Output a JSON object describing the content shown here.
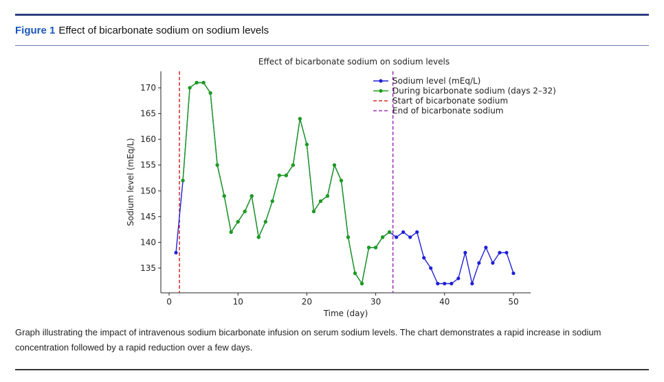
{
  "figure": {
    "label": "Figure 1",
    "title": "Effect of bicarbonate sodium on sodium levels",
    "caption": "Graph illustrating the impact of intravenous sodium bicarbonate infusion on serum sodium levels. The chart demonstrates a rapid increase in sodium concentration followed by a rapid reduction over a few days."
  },
  "chart_data": {
    "type": "line",
    "title": "Effect of bicarbonate sodium on sodium levels",
    "xlabel": "Time (day)",
    "ylabel": "Sodium level (mEq/L)",
    "xlim": [
      -1.2,
      52.5
    ],
    "ylim": [
      130.2,
      173.2
    ],
    "xticks": [
      0,
      10,
      20,
      30,
      40,
      50
    ],
    "yticks": [
      135,
      140,
      145,
      150,
      155,
      160,
      165,
      170
    ],
    "grid": false,
    "legend_position": "top-right",
    "series": [
      {
        "name": "Sodium level (mEq/L)",
        "color": "#1f1fd6",
        "x": [
          1,
          2,
          3,
          4,
          5,
          6,
          7,
          8,
          9,
          10,
          11,
          12,
          13,
          14,
          15,
          16,
          17,
          18,
          19,
          20,
          21,
          22,
          23,
          24,
          25,
          26,
          27,
          28,
          29,
          30,
          31,
          32,
          33,
          34,
          35,
          36,
          37,
          38,
          39,
          40,
          41,
          42,
          43,
          44,
          45,
          46,
          47,
          48,
          49,
          50
        ],
        "values": [
          138,
          152,
          170,
          171,
          171,
          169,
          155,
          149,
          142,
          144,
          146,
          149,
          141,
          144,
          148,
          153,
          153,
          155,
          164,
          159,
          146,
          148,
          149,
          155,
          152,
          141,
          134,
          132,
          139,
          139,
          141,
          142,
          141,
          142,
          141,
          142,
          137,
          135,
          132,
          132,
          132,
          133,
          138,
          132,
          136,
          139,
          136,
          138,
          138,
          134
        ]
      },
      {
        "name": "During bicarbonate sodium (days 2–32)",
        "color": "#1a9e1a",
        "x": [
          2,
          3,
          4,
          5,
          6,
          7,
          8,
          9,
          10,
          11,
          12,
          13,
          14,
          15,
          16,
          17,
          18,
          19,
          20,
          21,
          22,
          23,
          24,
          25,
          26,
          27,
          28,
          29,
          30,
          31,
          32
        ],
        "values": [
          152,
          170,
          171,
          171,
          169,
          155,
          149,
          142,
          144,
          146,
          149,
          141,
          144,
          148,
          153,
          153,
          155,
          164,
          159,
          146,
          148,
          149,
          155,
          152,
          141,
          134,
          132,
          139,
          139,
          141,
          142
        ]
      }
    ],
    "vlines": [
      {
        "name": "Start of bicarbonate sodium",
        "x": 1.5,
        "color": "#d62728",
        "style": "dashed"
      },
      {
        "name": "End of bicarbonate sodium",
        "x": 32.5,
        "color": "#9b2fb5",
        "style": "dashed"
      }
    ]
  }
}
